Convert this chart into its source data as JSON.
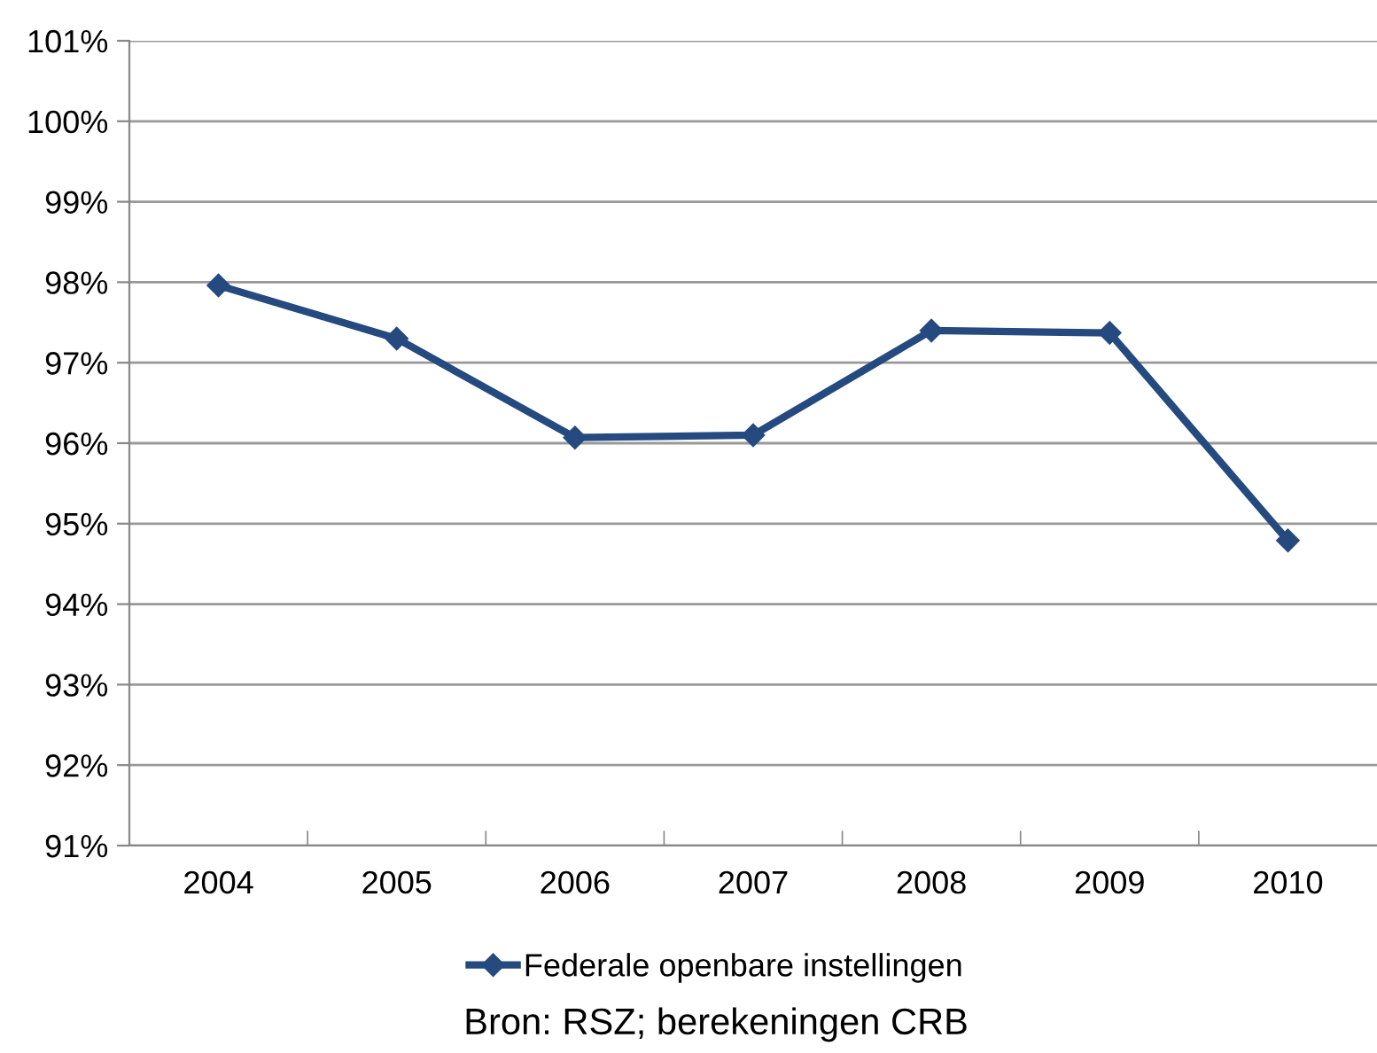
{
  "chart_data": {
    "type": "line",
    "categories": [
      "2004",
      "2005",
      "2006",
      "2007",
      "2008",
      "2009",
      "2010"
    ],
    "series": [
      {
        "name": "Federale openbare instellingen",
        "color": "#254a7f",
        "values": [
          97.96,
          97.3,
          96.07,
          96.1,
          97.4,
          97.37,
          94.79
        ]
      }
    ],
    "ylim": [
      91,
      101
    ],
    "yticks": [
      {
        "value": 91,
        "label": "91%"
      },
      {
        "value": 92,
        "label": "92%"
      },
      {
        "value": 93,
        "label": "93%"
      },
      {
        "value": 94,
        "label": "94%"
      },
      {
        "value": 95,
        "label": "95%"
      },
      {
        "value": 96,
        "label": "96%"
      },
      {
        "value": 97,
        "label": "97%"
      },
      {
        "value": 98,
        "label": "98%"
      },
      {
        "value": 99,
        "label": "99%"
      },
      {
        "value": 100,
        "label": "100%"
      },
      {
        "value": 101,
        "label": "101%"
      }
    ],
    "grid": "y",
    "legend": "bottom",
    "marker": "diamond",
    "line_style": "solid",
    "annotations": [
      "Bron: RSZ; berekeningen CRB"
    ]
  }
}
